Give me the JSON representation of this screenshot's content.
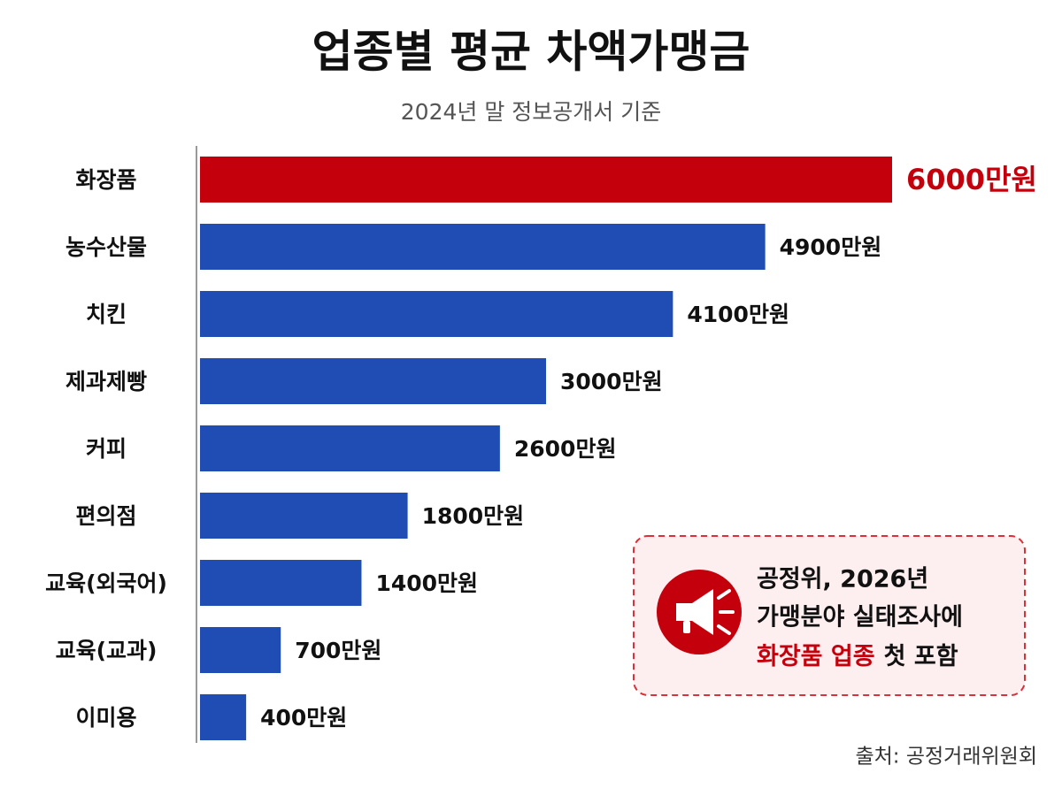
{
  "chart_data": {
    "type": "bar",
    "orientation": "horizontal",
    "title": "업종별 평균 차액가맹금",
    "subtitle": "2024년 말 정보공개서 기준",
    "categories": [
      "화장품",
      "농수산물",
      "치킨",
      "제과제빵",
      "커피",
      "편의점",
      "교육(외국어)",
      "교육(교과)",
      "이미용"
    ],
    "values": [
      6000,
      4900,
      4100,
      3000,
      2600,
      1800,
      1400,
      700,
      400
    ],
    "value_labels": [
      "6000만원",
      "4900만원",
      "4100만원",
      "3000만원",
      "2600만원",
      "1800만원",
      "1400만원",
      "700만원",
      "400만원"
    ],
    "colors": [
      "#c4000c",
      "#1f4db3",
      "#1f4db3",
      "#1f4db3",
      "#1f4db3",
      "#1f4db3",
      "#1f4db3",
      "#1f4db3",
      "#1f4db3"
    ],
    "xlim": [
      0,
      6000
    ],
    "annotation": {
      "lines": [
        "공정위, 2026년",
        "가맹분야 실태조사에"
      ],
      "highlight": "화장품 업종",
      "rest": "첫 포함"
    },
    "source": "출처: 공정거래위원회"
  }
}
